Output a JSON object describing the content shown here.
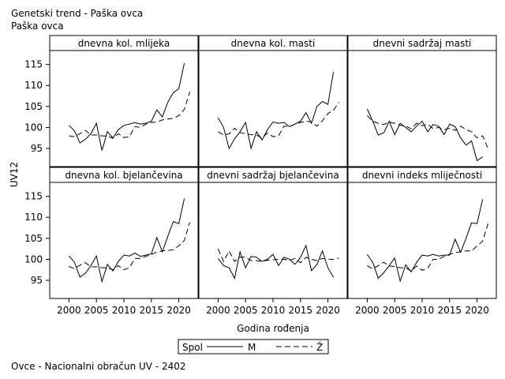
{
  "title": "Genetski trend - Paška ovca",
  "subtitle": "Paška ovca",
  "footnote": "Ovce - Nacionalni obračun UV - 2402",
  "chart_data": {
    "type": "line",
    "xlabel": "Godina rođenja",
    "ylabel": "UV12",
    "xlim": [
      1997.5,
      2022.5
    ],
    "ylim": [
      92,
      117
    ],
    "xticks": [
      2000,
      2005,
      2010,
      2015,
      2020
    ],
    "yticks": [
      95,
      100,
      105,
      110,
      115
    ],
    "x": [
      2000,
      2001,
      2002,
      2003,
      2004,
      2005,
      2006,
      2007,
      2008,
      2009,
      2010,
      2011,
      2012,
      2013,
      2014,
      2015,
      2016,
      2017,
      2018,
      2019,
      2020,
      2021,
      2022
    ],
    "legend": {
      "title": "Spol",
      "entries": [
        {
          "label": "M",
          "style": "solid"
        },
        {
          "label": "Ž",
          "style": "dashed"
        }
      ]
    },
    "panels": [
      {
        "title": "dnevna kol. mlijeka",
        "series": [
          {
            "name": "M",
            "values": [
              100.5,
              99.2,
              96.3,
              97.2,
              98.5,
              101.0,
              94.5,
              99.0,
              97.5,
              99.5,
              100.5,
              100.8,
              101.2,
              100.8,
              101.0,
              101.5,
              104.2,
              102.5,
              106.0,
              108.3,
              109.2,
              115.3,
              null
            ]
          },
          {
            "name": "Ž",
            "values": [
              98.0,
              97.8,
              98.5,
              99.3,
              98.2,
              98.2,
              98.0,
              98.0,
              97.4,
              98.5,
              97.6,
              97.8,
              100.2,
              100.0,
              100.8,
              101.2,
              101.3,
              101.8,
              102.0,
              102.2,
              102.8,
              104.3,
              108.5
            ]
          }
        ]
      },
      {
        "title": "dnevna kol. masti",
        "series": [
          {
            "name": "M",
            "values": [
              102.3,
              100.0,
              95.0,
              97.3,
              99.0,
              101.2,
              95.0,
              99.0,
              97.0,
              99.5,
              101.3,
              101.0,
              101.2,
              100.2,
              100.8,
              101.5,
              103.5,
              101.0,
              105.0,
              106.2,
              105.5,
              113.2,
              null
            ]
          },
          {
            "name": "Ž",
            "values": [
              99.0,
              98.2,
              98.5,
              99.8,
              98.8,
              98.5,
              98.3,
              98.2,
              97.5,
              98.7,
              97.8,
              98.0,
              100.3,
              100.2,
              100.8,
              101.2,
              101.5,
              101.3,
              100.3,
              101.6,
              103.3,
              104.1,
              106.0
            ]
          }
        ]
      },
      {
        "title": "dnevni sadržaj masti",
        "series": [
          {
            "name": "M",
            "values": [
              104.4,
              101.5,
              98.2,
              98.7,
              101.5,
              98.3,
              101.0,
              100.0,
              99.0,
              100.3,
              101.5,
              99.0,
              100.7,
              100.3,
              98.3,
              100.8,
              100.2,
              97.5,
              95.8,
              96.8,
              92.1,
              93.0,
              null
            ]
          },
          {
            "name": "Ž",
            "values": [
              102.8,
              101.5,
              101.0,
              100.7,
              101.3,
              101.0,
              100.5,
              100.3,
              99.7,
              101.0,
              100.4,
              100.8,
              99.7,
              100.0,
              99.5,
              99.8,
              99.3,
              100.3,
              99.5,
              99.0,
              97.5,
              98.0,
              95.0
            ]
          }
        ]
      },
      {
        "title": "dnevna kol. bjelančevina",
        "series": [
          {
            "name": "M",
            "values": [
              100.8,
              99.3,
              95.8,
              96.7,
              98.5,
              100.8,
              94.7,
              98.8,
              97.2,
              99.5,
              101.0,
              100.8,
              101.5,
              100.7,
              101.0,
              101.3,
              105.2,
              101.8,
              105.5,
              109.0,
              108.5,
              114.5,
              null
            ]
          },
          {
            "name": "Ž",
            "values": [
              98.3,
              97.8,
              98.6,
              99.2,
              98.2,
              98.2,
              98.0,
              98.0,
              97.5,
              98.5,
              97.5,
              98.0,
              100.2,
              100.2,
              100.7,
              101.2,
              101.7,
              102.0,
              102.1,
              102.3,
              103.2,
              104.5,
              108.8
            ]
          }
        ]
      },
      {
        "title": "dnevni sadržaj bjelančevina",
        "series": [
          {
            "name": "M",
            "values": [
              100.2,
              98.5,
              98.0,
              95.5,
              101.8,
              98.0,
              100.7,
              100.5,
              99.5,
              100.0,
              101.2,
              98.5,
              100.5,
              100.0,
              98.8,
              100.5,
              103.3,
              97.3,
              98.8,
              102.0,
              98.0,
              95.7,
              null
            ]
          },
          {
            "name": "Ž",
            "values": [
              102.5,
              99.5,
              102.0,
              99.5,
              100.5,
              100.5,
              99.7,
              99.7,
              99.5,
              99.8,
              99.9,
              100.0,
              100.0,
              99.8,
              100.2,
              99.2,
              100.5,
              100.0,
              99.7,
              100.2,
              100.0,
              100.0,
              100.3
            ]
          }
        ]
      },
      {
        "title": "dnevni indeks mliječnosti",
        "series": [
          {
            "name": "M",
            "values": [
              101.2,
              99.3,
              95.5,
              96.8,
              98.5,
              100.3,
              94.8,
              98.7,
              97.0,
              99.3,
              101.0,
              100.8,
              101.2,
              100.8,
              101.0,
              101.0,
              104.8,
              101.7,
              105.0,
              108.7,
              108.5,
              114.3,
              null
            ]
          },
          {
            "name": "Ž",
            "values": [
              98.5,
              97.7,
              98.5,
              99.3,
              98.4,
              98.3,
              98.0,
              98.0,
              97.2,
              98.4,
              97.4,
              97.8,
              100.0,
              100.0,
              100.7,
              101.2,
              101.6,
              101.8,
              102.0,
              102.0,
              103.2,
              104.3,
              108.5
            ]
          }
        ]
      }
    ]
  }
}
